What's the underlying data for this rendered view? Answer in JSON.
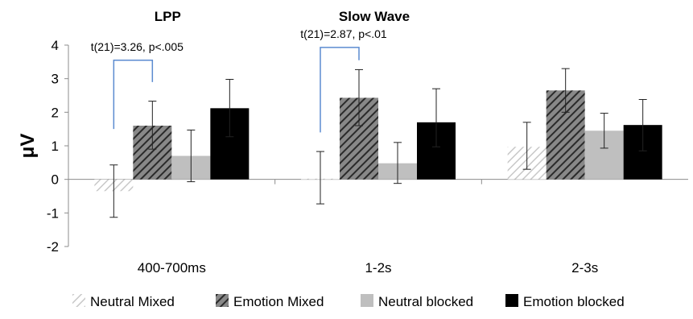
{
  "chart_data": {
    "type": "bar",
    "categories": [
      "400-700ms",
      "1-2s",
      "2-3s"
    ],
    "panel_titles": [
      {
        "label": "LPP",
        "category_index": 0
      },
      {
        "label": "Slow Wave",
        "category_index": 1
      }
    ],
    "ylabel": "μV",
    "ylim": [
      -2,
      4
    ],
    "yticks": [
      -2,
      -1,
      0,
      1,
      2,
      3,
      4
    ],
    "grid": false,
    "legend_position": "bottom",
    "series": [
      {
        "name": "Neutral Mixed",
        "pattern": "light-hatch",
        "color": "#d0d0d0",
        "values": [
          -0.35,
          0.02,
          0.97
        ],
        "error": [
          [
            -1.13,
            0.43
          ],
          [
            -0.73,
            0.83
          ],
          [
            0.3,
            1.7
          ]
        ]
      },
      {
        "name": "Emotion Mixed",
        "pattern": "dark-hatch",
        "color": "#333333",
        "values": [
          1.6,
          2.43,
          2.65
        ],
        "error": [
          [
            0.9,
            2.33
          ],
          [
            1.6,
            3.27
          ],
          [
            2.0,
            3.3
          ]
        ]
      },
      {
        "name": "Neutral blocked",
        "pattern": "solid",
        "color": "#bfbfbf",
        "values": [
          0.7,
          0.48,
          1.45
        ],
        "error": [
          [
            -0.07,
            1.47
          ],
          [
            -0.12,
            1.1
          ],
          [
            0.93,
            1.97
          ]
        ]
      },
      {
        "name": "Emotion blocked",
        "pattern": "solid",
        "color": "#000000",
        "values": [
          2.12,
          1.7,
          1.62
        ],
        "error": [
          [
            1.27,
            2.98
          ],
          [
            0.97,
            2.7
          ],
          [
            0.85,
            2.38
          ]
        ]
      }
    ],
    "annotations": [
      {
        "text": "t(21)=3.26, p<.005",
        "category_index": 0,
        "from_series": 0,
        "to_series": 1,
        "bracket_top": 3.55,
        "left_bottom": 1.5,
        "right_bottom": 2.9,
        "color": "#5b8bd0"
      },
      {
        "text": "t(21)=2.87, p<.01",
        "category_index": 1,
        "from_series": 0,
        "to_series": 1,
        "bracket_top": 3.93,
        "left_bottom": 1.4,
        "right_bottom": 3.55,
        "color": "#5b8bd0"
      }
    ],
    "colors": {
      "axis": "#8c8c8c",
      "error_bar": "#222222",
      "text": "#000000"
    }
  }
}
